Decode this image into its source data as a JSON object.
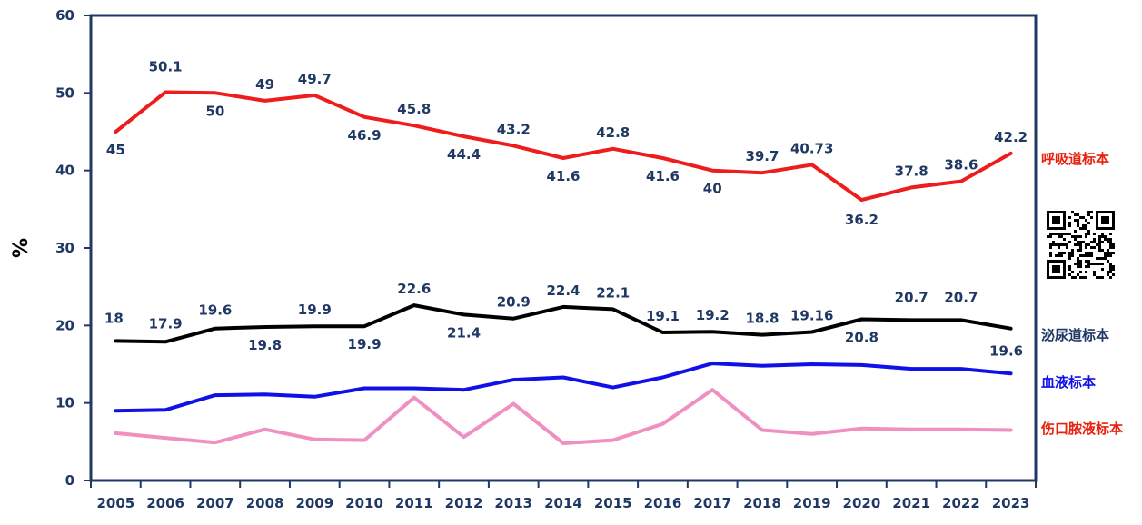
{
  "chart_data": {
    "type": "line",
    "title": "",
    "xlabel": "",
    "ylabel": "%",
    "ylim": [
      0,
      60
    ],
    "yticks": [
      0,
      10,
      20,
      30,
      40,
      50,
      60
    ],
    "grid": false,
    "legend": "right",
    "categories": [
      "2005",
      "2006",
      "2007",
      "2008",
      "2009",
      "2010",
      "2011",
      "2012",
      "2013",
      "2014",
      "2015",
      "2016",
      "2017",
      "2018",
      "2019",
      "2020",
      "2021",
      "2022",
      "2023"
    ],
    "series": [
      {
        "name": "呼吸道标本",
        "color": "#ee1c1c",
        "values": [
          45,
          50.1,
          50,
          49,
          49.7,
          46.9,
          45.8,
          44.4,
          43.2,
          41.6,
          42.8,
          41.6,
          40,
          39.7,
          40.73,
          36.2,
          37.8,
          38.6,
          42.2
        ],
        "labels": [
          "45",
          "50.1",
          "50",
          "49",
          "49.7",
          "46.9",
          "45.8",
          "44.4",
          "43.2",
          "41.6",
          "42.8",
          "41.6",
          "40",
          "39.7",
          "40.73",
          "36.2",
          "37.8",
          "38.6",
          "42.2"
        ]
      },
      {
        "name": "泌尿道标本",
        "color": "#000000",
        "values": [
          18,
          17.9,
          19.6,
          19.8,
          19.9,
          19.9,
          22.6,
          21.4,
          20.9,
          22.4,
          22.1,
          19.1,
          19.2,
          18.8,
          19.16,
          20.8,
          20.7,
          20.7,
          19.6
        ],
        "labels": [
          "18",
          "17.9",
          "19.6",
          "19.8",
          "19.9",
          "19.9",
          "22.6",
          "21.4",
          "20.9",
          "22.4",
          "22.1",
          "19.1",
          "19.2",
          "18.8",
          "19.16",
          "20.8",
          "20.7",
          "20.7",
          "19.6"
        ]
      },
      {
        "name": "血液标本",
        "color": "#1010e8",
        "values": [
          9,
          9.1,
          11,
          11.1,
          10.8,
          11.9,
          11.9,
          11.7,
          13,
          13.3,
          12,
          13.3,
          15.1,
          14.8,
          15,
          14.9,
          14.4,
          14.4,
          13.8
        ]
      },
      {
        "name": "伤口脓液标本",
        "color": "#f090c0",
        "values": [
          6.1,
          5.5,
          4.9,
          6.6,
          5.3,
          5.2,
          10.7,
          5.6,
          9.9,
          4.8,
          5.2,
          7.3,
          11.7,
          6.5,
          6,
          6.7,
          6.6,
          6.6,
          6.5
        ]
      }
    ]
  },
  "legend_colors": {
    "呼吸道标本": "#e8200c",
    "泌尿道标本": "#1f3864",
    "血液标本": "#1010e8",
    "伤口脓液标本": "#e8200c"
  },
  "qr_icon": "qr-code-icon"
}
